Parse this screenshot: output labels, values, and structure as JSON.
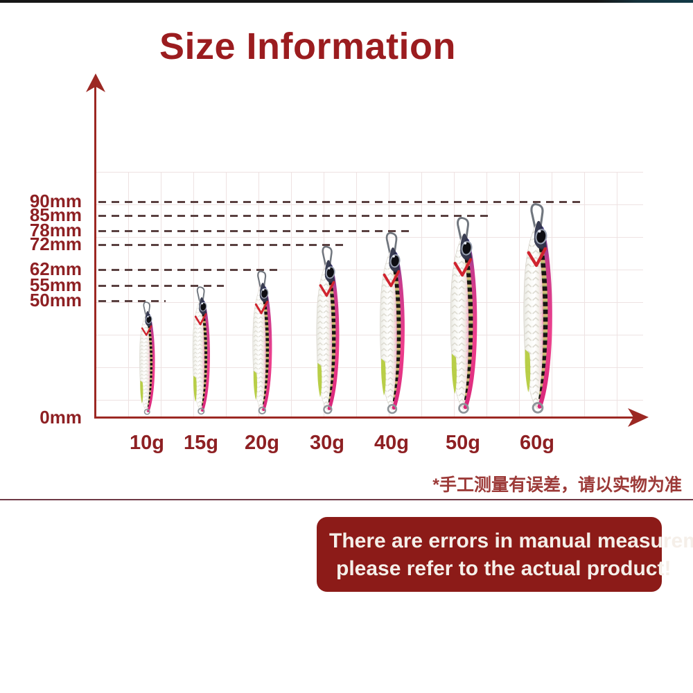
{
  "page": {
    "title": "Size Information",
    "note_zh": "*手工测量有误差，请以实物为准",
    "disclaimer_line1": "There are errors in manual measurement,",
    "disclaimer_line2": "please refer to the actual product!"
  },
  "colors": {
    "title_red": "#9b1c1f",
    "axis_red": "#9c2823",
    "tick_label_red": "#8e2023",
    "dash_line": "#5a4040",
    "note_red": "#9c3a38",
    "divider": "#6e3946",
    "box_background": "#8c1b18",
    "box_text": "#f5efe9",
    "lure_pink": "#e8368a",
    "lure_yellow_patch": "#b5cc3f",
    "top_bar": "#161616"
  },
  "chart_data": {
    "type": "bar",
    "title": "Size Information",
    "categories": [
      "10g",
      "15g",
      "20g",
      "30g",
      "40g",
      "50g",
      "60g"
    ],
    "values": [
      50,
      55,
      62,
      72,
      78,
      85,
      90
    ],
    "value_unit": "mm",
    "category_unit": "g",
    "y_axis_ticks": [
      "90mm",
      "85mm",
      "78mm",
      "72mm",
      "62mm",
      "55mm",
      "50mm",
      "0mm"
    ],
    "origin_label": "0mm",
    "grid": true,
    "legend": "none",
    "annotation": "each dashed guide line marks the total length of the jig lure pictured below it"
  }
}
